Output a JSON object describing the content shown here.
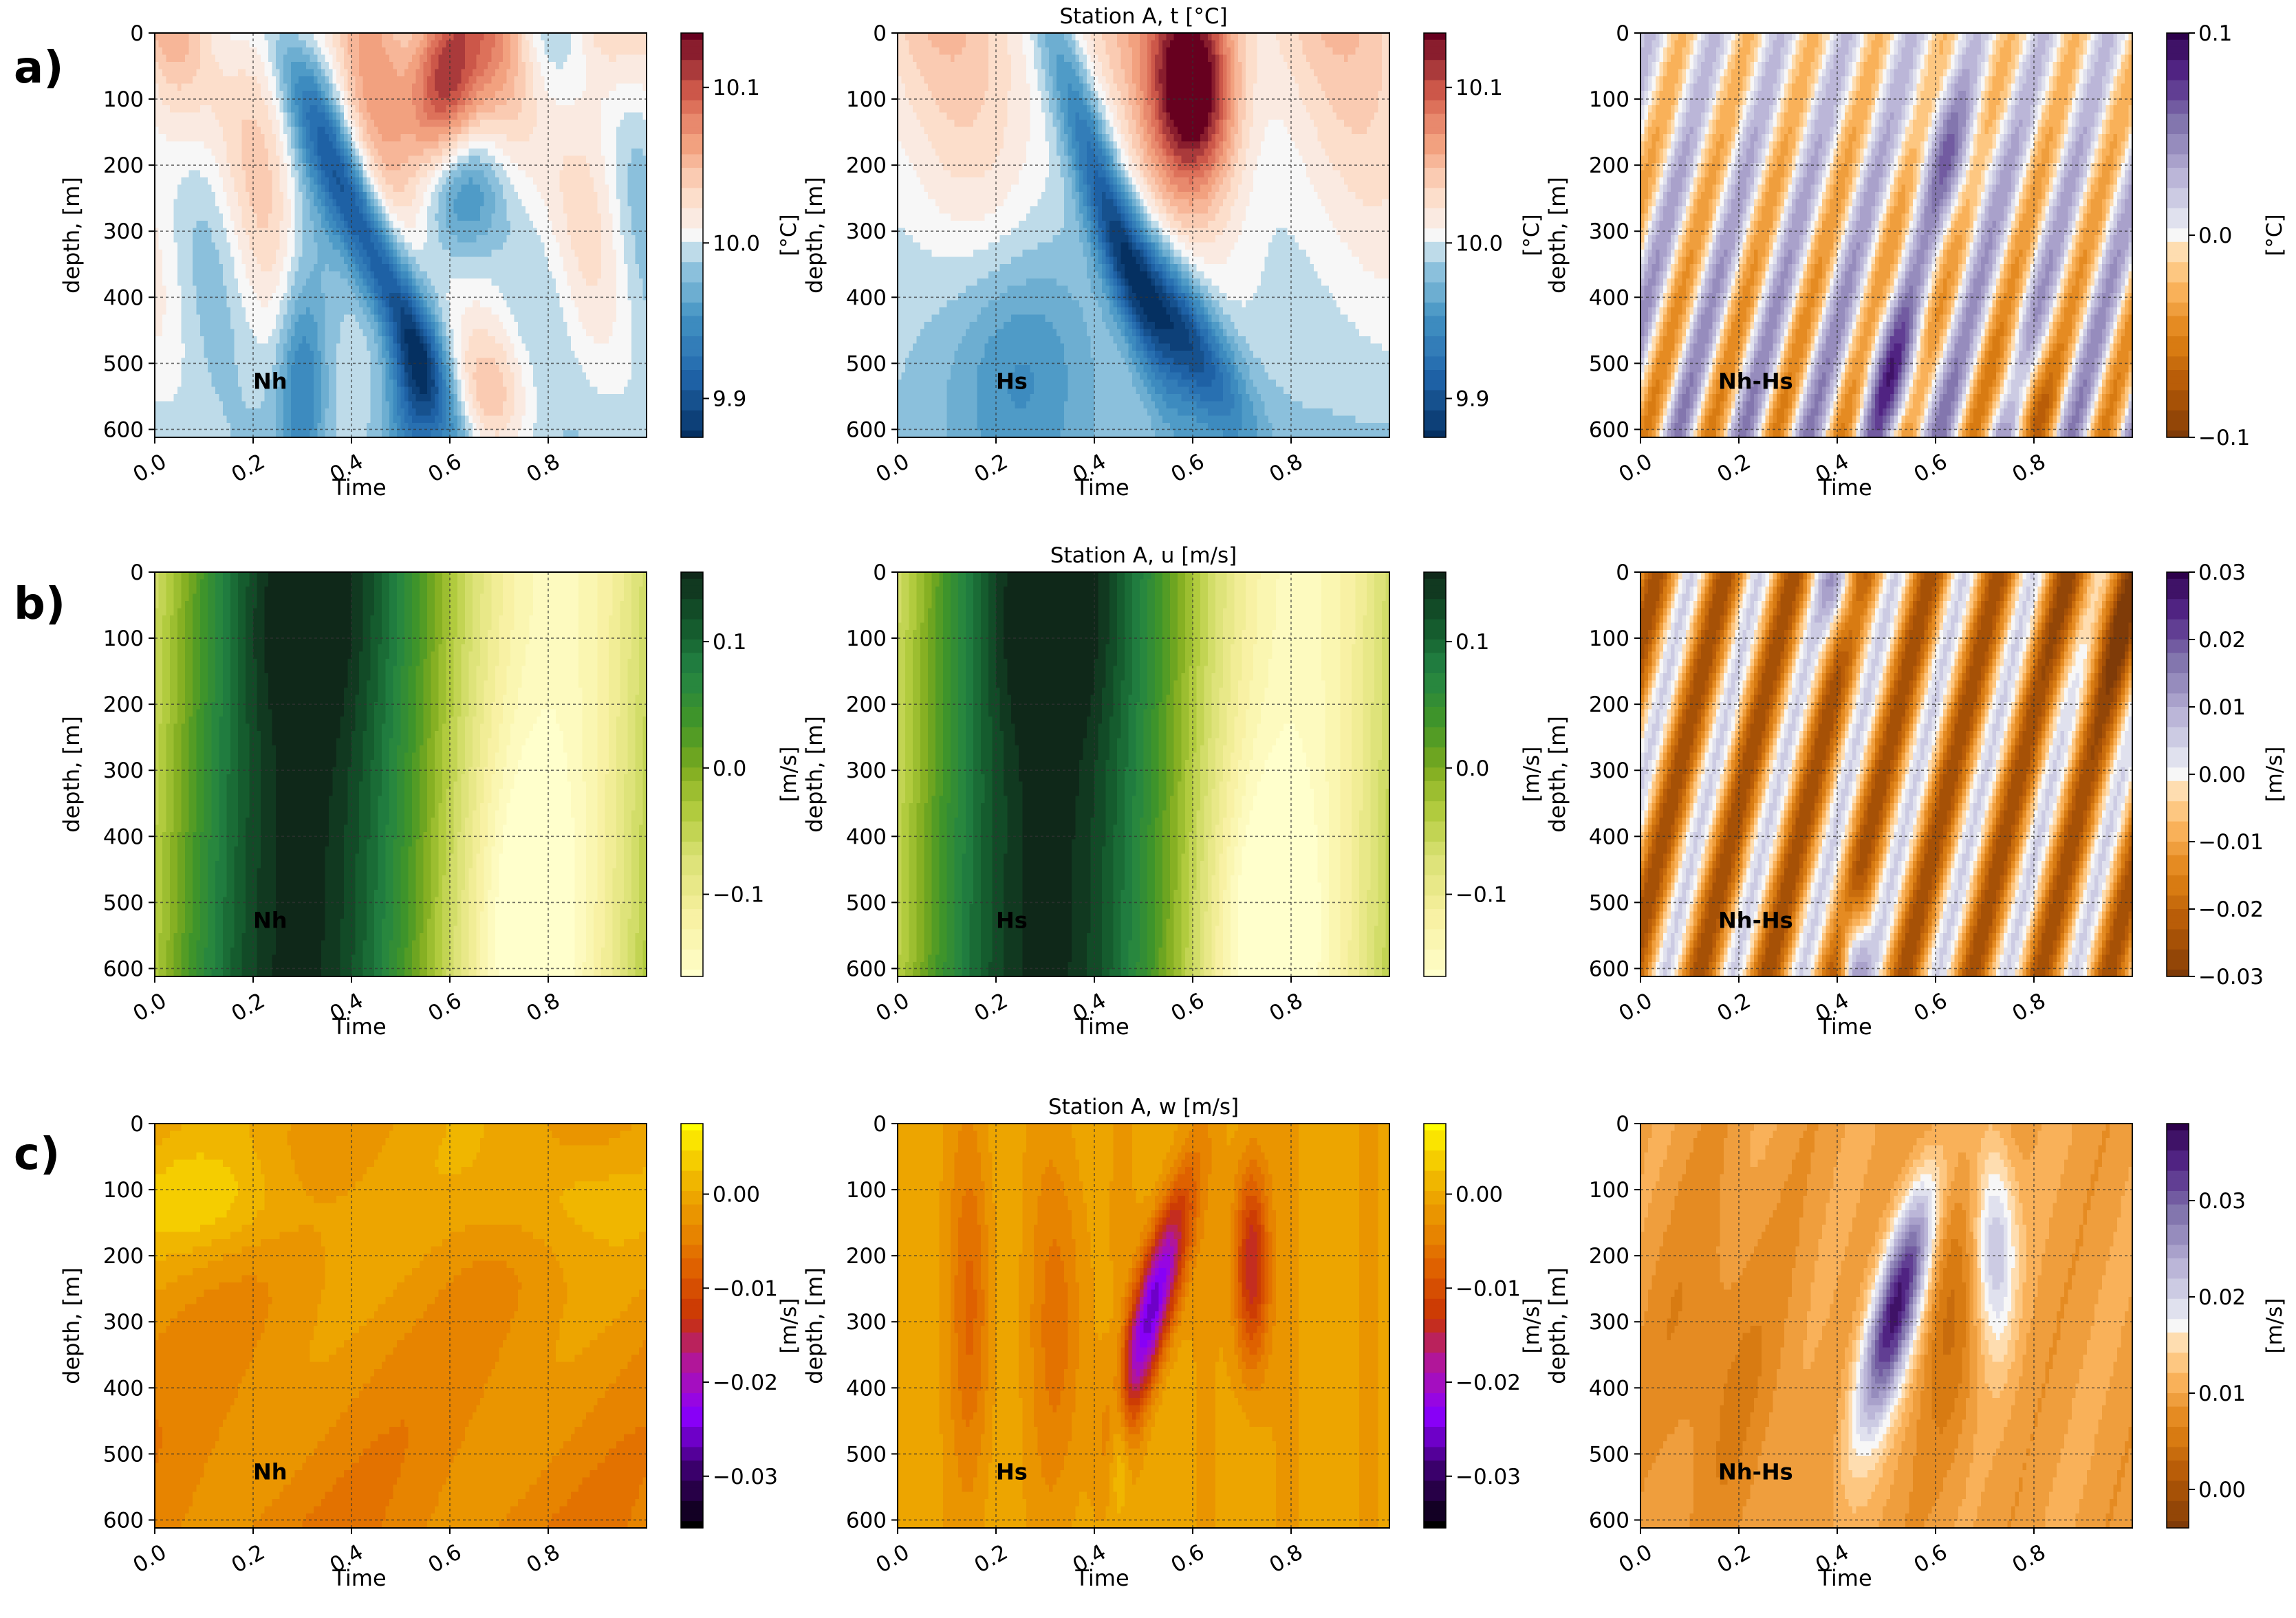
{
  "figure": {
    "row_labels": [
      "a)",
      "b)",
      "c)"
    ],
    "x_label": "Time",
    "y_label": "depth, [m]"
  },
  "chart_data": [
    {
      "type": "heatmap",
      "row": 0,
      "col": 0,
      "field": "t",
      "title": "",
      "inset_label": "Nh",
      "xlabel": "Time",
      "ylabel": "depth, [m]",
      "x_ticks": [
        "0.0",
        "0.2",
        "0.4",
        "0.6",
        "0.8"
      ],
      "y_ticks": [
        "0",
        "100",
        "200",
        "300",
        "400",
        "500",
        "600"
      ],
      "xlim": [
        0,
        1
      ],
      "ylim": [
        612,
        0
      ],
      "colormap": "RdBu_r",
      "colorbar_label": "[°C]",
      "colorbar_ticks": [
        "9.9",
        "10.0",
        "10.1"
      ],
      "colorbar_tick_values": [
        9.9,
        10.0,
        10.1
      ],
      "vmin": 9.875,
      "vmax": 10.135
    },
    {
      "type": "heatmap",
      "row": 0,
      "col": 1,
      "field": "t",
      "title": "Station A, t [°C]",
      "inset_label": "Hs",
      "xlabel": "Time",
      "ylabel": "depth, [m]",
      "x_ticks": [
        "0.0",
        "0.2",
        "0.4",
        "0.6",
        "0.8"
      ],
      "y_ticks": [
        "0",
        "100",
        "200",
        "300",
        "400",
        "500",
        "600"
      ],
      "xlim": [
        0,
        1
      ],
      "ylim": [
        612,
        0
      ],
      "colormap": "RdBu_r",
      "colorbar_label": "[°C]",
      "colorbar_ticks": [
        "9.9",
        "10.0",
        "10.1"
      ],
      "colorbar_tick_values": [
        9.9,
        10.0,
        10.1
      ],
      "vmin": 9.875,
      "vmax": 10.135
    },
    {
      "type": "heatmap",
      "row": 0,
      "col": 2,
      "field": "t_diff",
      "title": "",
      "inset_label": "Nh-Hs",
      "xlabel": "Time",
      "ylabel": "depth, [m]",
      "x_ticks": [
        "0.0",
        "0.2",
        "0.4",
        "0.6",
        "0.8"
      ],
      "y_ticks": [
        "0",
        "100",
        "200",
        "300",
        "400",
        "500",
        "600"
      ],
      "xlim": [
        0,
        1
      ],
      "ylim": [
        612,
        0
      ],
      "colormap": "PuOr",
      "colorbar_label": "[°C]",
      "colorbar_ticks": [
        "−0.1",
        "0.0",
        "0.1"
      ],
      "colorbar_tick_values": [
        -0.1,
        0.0,
        0.1
      ],
      "vmin": -0.1,
      "vmax": 0.1
    },
    {
      "type": "heatmap",
      "row": 1,
      "col": 0,
      "field": "u",
      "title": "",
      "inset_label": "Nh",
      "xlabel": "Time",
      "ylabel": "depth, [m]",
      "x_ticks": [
        "0.0",
        "0.2",
        "0.4",
        "0.6",
        "0.8"
      ],
      "y_ticks": [
        "0",
        "100",
        "200",
        "300",
        "400",
        "500",
        "600"
      ],
      "xlim": [
        0,
        1
      ],
      "ylim": [
        612,
        0
      ],
      "colormap": "YlGn",
      "colorbar_label": "[m/s]",
      "colorbar_ticks": [
        "−0.1",
        "0.0",
        "0.1"
      ],
      "colorbar_tick_values": [
        -0.1,
        0.0,
        0.1
      ],
      "vmin": -0.165,
      "vmax": 0.155
    },
    {
      "type": "heatmap",
      "row": 1,
      "col": 1,
      "field": "u",
      "title": "Station A, u [m/s]",
      "inset_label": "Hs",
      "xlabel": "Time",
      "ylabel": "depth, [m]",
      "x_ticks": [
        "0.0",
        "0.2",
        "0.4",
        "0.6",
        "0.8"
      ],
      "y_ticks": [
        "0",
        "100",
        "200",
        "300",
        "400",
        "500",
        "600"
      ],
      "xlim": [
        0,
        1
      ],
      "ylim": [
        612,
        0
      ],
      "colormap": "YlGn",
      "colorbar_label": "[m/s]",
      "colorbar_ticks": [
        "−0.1",
        "0.0",
        "0.1"
      ],
      "colorbar_tick_values": [
        -0.1,
        0.0,
        0.1
      ],
      "vmin": -0.165,
      "vmax": 0.155
    },
    {
      "type": "heatmap",
      "row": 1,
      "col": 2,
      "field": "u_diff",
      "title": "",
      "inset_label": "Nh-Hs",
      "xlabel": "Time",
      "ylabel": "depth, [m]",
      "x_ticks": [
        "0.0",
        "0.2",
        "0.4",
        "0.6",
        "0.8"
      ],
      "y_ticks": [
        "0",
        "100",
        "200",
        "300",
        "400",
        "500",
        "600"
      ],
      "xlim": [
        0,
        1
      ],
      "ylim": [
        612,
        0
      ],
      "colormap": "PuOr",
      "colorbar_label": "[m/s]",
      "colorbar_ticks": [
        "−0.03",
        "−0.02",
        "−0.01",
        "0.00",
        "0.01",
        "0.02",
        "0.03"
      ],
      "colorbar_tick_values": [
        -0.03,
        -0.02,
        -0.01,
        0.0,
        0.01,
        0.02,
        0.03
      ],
      "vmin": -0.03,
      "vmax": 0.03
    },
    {
      "type": "heatmap",
      "row": 2,
      "col": 0,
      "field": "w",
      "title": "",
      "inset_label": "Nh",
      "xlabel": "Time",
      "ylabel": "depth, [m]",
      "x_ticks": [
        "0.0",
        "0.2",
        "0.4",
        "0.6",
        "0.8"
      ],
      "y_ticks": [
        "0",
        "100",
        "200",
        "300",
        "400",
        "500",
        "600"
      ],
      "xlim": [
        0,
        1
      ],
      "ylim": [
        612,
        0
      ],
      "colormap": "gnuplot",
      "colorbar_label": "[m/s]",
      "colorbar_ticks": [
        "−0.03",
        "−0.02",
        "−0.01",
        "0.00"
      ],
      "colorbar_tick_values": [
        -0.03,
        -0.02,
        -0.01,
        0.0
      ],
      "vmin": -0.0355,
      "vmax": 0.0075
    },
    {
      "type": "heatmap",
      "row": 2,
      "col": 1,
      "field": "w",
      "title": "Station A, w [m/s]",
      "inset_label": "Hs",
      "xlabel": "Time",
      "ylabel": "depth, [m]",
      "x_ticks": [
        "0.0",
        "0.2",
        "0.4",
        "0.6",
        "0.8"
      ],
      "y_ticks": [
        "0",
        "100",
        "200",
        "300",
        "400",
        "500",
        "600"
      ],
      "xlim": [
        0,
        1
      ],
      "ylim": [
        612,
        0
      ],
      "colormap": "gnuplot",
      "colorbar_label": "[m/s]",
      "colorbar_ticks": [
        "−0.03",
        "−0.02",
        "−0.01",
        "0.00"
      ],
      "colorbar_tick_values": [
        -0.03,
        -0.02,
        -0.01,
        0.0
      ],
      "vmin": -0.0355,
      "vmax": 0.0075
    },
    {
      "type": "heatmap",
      "row": 2,
      "col": 2,
      "field": "w_diff",
      "title": "",
      "inset_label": "Nh-Hs",
      "xlabel": "Time",
      "ylabel": "depth, [m]",
      "x_ticks": [
        "0.0",
        "0.2",
        "0.4",
        "0.6",
        "0.8"
      ],
      "y_ticks": [
        "0",
        "100",
        "200",
        "300",
        "400",
        "500",
        "600"
      ],
      "xlim": [
        0,
        1
      ],
      "ylim": [
        612,
        0
      ],
      "colormap": "PuOr",
      "colorbar_label": "[m/s]",
      "colorbar_ticks": [
        "0.00",
        "0.01",
        "0.02",
        "0.03"
      ],
      "colorbar_tick_values": [
        0.0,
        0.01,
        0.02,
        0.03
      ],
      "vmin": -0.004,
      "vmax": 0.038
    }
  ]
}
